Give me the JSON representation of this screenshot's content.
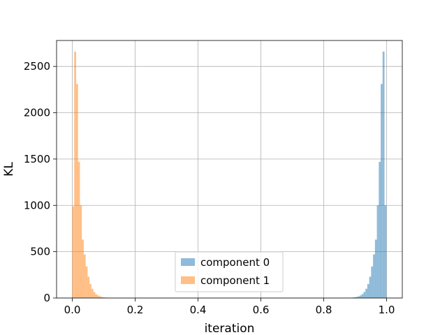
{
  "chart_data": {
    "type": "bar",
    "title": "",
    "xlabel": "iteration",
    "ylabel": "KL",
    "xlim": [
      -0.05,
      1.05
    ],
    "ylim": [
      0,
      2780
    ],
    "xticks": [
      0.0,
      0.2,
      0.4,
      0.6,
      0.8,
      1.0
    ],
    "xtick_labels": [
      "0.0",
      "0.2",
      "0.4",
      "0.6",
      "0.8",
      "1.0"
    ],
    "yticks": [
      0,
      500,
      1000,
      1500,
      2000,
      2500
    ],
    "ytick_labels": [
      "0",
      "500",
      "1000",
      "1500",
      "2000",
      "2500"
    ],
    "grid": true,
    "legend_position": "lower center",
    "series": [
      {
        "name": "component 0",
        "color": "#1f77b4",
        "alpha": 0.5,
        "bin_width": 0.00608,
        "bin_starts": [
          0.8778,
          0.8839,
          0.89,
          0.8961,
          0.9022,
          0.9082,
          0.9143,
          0.9204,
          0.9265,
          0.9326,
          0.9387,
          0.9447,
          0.9508,
          0.9569,
          0.963,
          0.9691,
          0.9752,
          0.9812,
          0.9873,
          0.9934
        ],
        "values": [
          2,
          3,
          5,
          8,
          12,
          18,
          28,
          42,
          65,
          100,
          150,
          230,
          340,
          470,
          630,
          1000,
          1470,
          2310,
          2660,
          1000
        ]
      },
      {
        "name": "component 1",
        "color": "#ff7f0e",
        "alpha": 0.5,
        "bin_width": 0.00608,
        "bin_starts": [
          0.0,
          0.0061,
          0.0122,
          0.0182,
          0.0243,
          0.0304,
          0.0365,
          0.0426,
          0.0487,
          0.0547,
          0.0608,
          0.0669,
          0.073,
          0.0791,
          0.0852,
          0.0912,
          0.0973,
          0.1034,
          0.1095,
          0.1156
        ],
        "values": [
          990,
          2660,
          2310,
          1470,
          1000,
          630,
          470,
          340,
          230,
          150,
          100,
          65,
          42,
          28,
          18,
          12,
          8,
          5,
          3,
          2
        ]
      }
    ]
  }
}
